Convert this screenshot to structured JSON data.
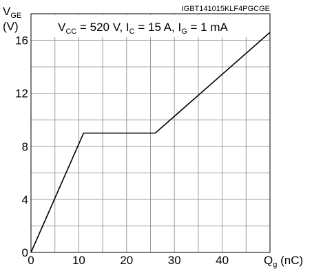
{
  "chart_data": {
    "type": "line",
    "part_number": "IGBT141015KLF4PGCGE",
    "conditions": {
      "vcc_main": "V",
      "vcc_sub": "CC",
      "vcc_value": " = 520 V, ",
      "ic_main": "I",
      "ic_sub": "C",
      "ic_value": " = 15 A, ",
      "ig_main": "I",
      "ig_sub": "G",
      "ig_value": " = 1 mA"
    },
    "ylabel": {
      "main": "V",
      "sub": "GE",
      "unit": "(V)"
    },
    "xlabel": {
      "main": "Q",
      "sub": "g",
      "unit": " (nC)"
    },
    "xlim": [
      0,
      50
    ],
    "ylim": [
      0,
      18
    ],
    "x_ticks": [
      0,
      10,
      20,
      30,
      40
    ],
    "x_tick_labels": [
      "0",
      "10",
      "20",
      "30",
      "40"
    ],
    "y_ticks": [
      0,
      4,
      8,
      12,
      16
    ],
    "y_tick_labels": [
      "0",
      "4",
      "8",
      "12",
      "16"
    ],
    "x_grid_step": 5,
    "y_grid_step": 2,
    "grid": true,
    "series": [
      {
        "x": [
          0,
          11,
          26,
          50
        ],
        "y": [
          0,
          9,
          9,
          16.6
        ]
      }
    ]
  }
}
